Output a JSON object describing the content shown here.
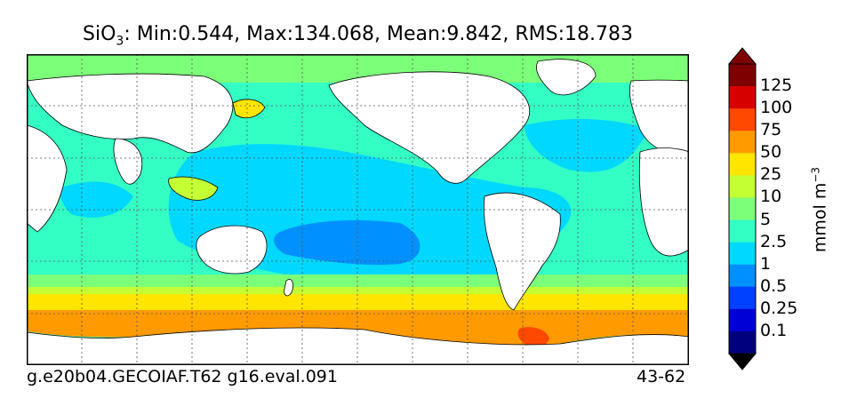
{
  "title": {
    "species": "SiO",
    "subscript": "3",
    "stats": ": Min:0.544, Max:134.068, Mean:9.842, RMS:18.783"
  },
  "footer": {
    "left": "g.e20b04.GECOIAF.T62 g16.eval.091",
    "right": "43-62"
  },
  "colorbar": {
    "units_base": "mmol m",
    "units_exp": "−3",
    "labels": [
      "125",
      "100",
      "75",
      "50",
      "25",
      "10",
      "5",
      "2.5",
      "1",
      "0.5",
      "0.25",
      "0.1"
    ],
    "colors": [
      "#00007f",
      "#0000d6",
      "#0040ff",
      "#0090ff",
      "#00d8ff",
      "#33ffc4",
      "#7cff79",
      "#c4ff33",
      "#ffe500",
      "#ff9a00",
      "#ff4800",
      "#d60000",
      "#7f0000"
    ],
    "extend_colors": {
      "low": "#000000",
      "high": "#000000"
    }
  },
  "map": {
    "projection": "equirectangular",
    "grid": "dotted",
    "land_color": "#ffffff",
    "zones": {
      "southern_orange": "#ff9a00",
      "southern_yellow": "#ffe500",
      "southern_midlat": "#7cff79",
      "southern_subtrop": "#33ffc4",
      "tropical": "#00d8ff",
      "south_pacific_low": "#0090ff",
      "weddell_red": "#ff4800",
      "arctic": "#7cff79",
      "north_pacific_high": "#33ffc4"
    }
  }
}
